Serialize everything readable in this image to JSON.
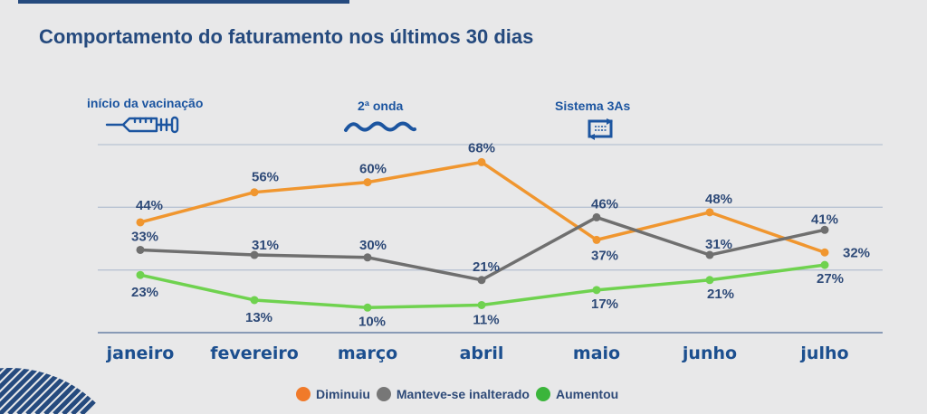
{
  "title": "Comportamento do faturamento nos últimos 30 dias",
  "annotations": [
    {
      "label": "início da vacinação",
      "icon": "syringe-icon",
      "month_index": 0
    },
    {
      "label": "2ª onda",
      "icon": "wave-icon",
      "month_index": 2
    },
    {
      "label": "Sistema 3As",
      "icon": "transfer-arrows-icon",
      "month_index": 4
    }
  ],
  "legend": [
    {
      "label": "Diminuiu",
      "color": "#f07a2a"
    },
    {
      "label": "Manteve-se inalterado",
      "color": "#777777"
    },
    {
      "label": "Aumentou",
      "color": "#3bb53b"
    }
  ],
  "colors": {
    "title": "#254a7e",
    "accent_blue": "#1c55a0",
    "gridline": "#b9c3d3",
    "axis": "#7a8fae",
    "label": "#2e4a78"
  },
  "chart_data": {
    "type": "line",
    "title": "Comportamento do faturamento nos últimos 30 dias",
    "xlabel": "",
    "ylabel": "",
    "categories": [
      "janeiro",
      "fevereiro",
      "março",
      "abril",
      "maio",
      "junho",
      "julho"
    ],
    "ylim": [
      0,
      75
    ],
    "gridlines": [
      25,
      50,
      75
    ],
    "grid": true,
    "legend_position": "bottom",
    "series": [
      {
        "name": "Diminuiu",
        "color": "#f0962f",
        "values": [
          44,
          56,
          60,
          68,
          37,
          48,
          32
        ],
        "labels": [
          "44%",
          "56%",
          "60%",
          "68%",
          "37%",
          "48%",
          "32%"
        ]
      },
      {
        "name": "Manteve-se inalterado",
        "color": "#6f6f6f",
        "values": [
          33,
          31,
          30,
          21,
          46,
          31,
          41
        ],
        "labels": [
          "33%",
          "31%",
          "30%",
          "21%",
          "46%",
          "31%",
          "41%"
        ]
      },
      {
        "name": "Aumentou",
        "color": "#6fd24f",
        "values": [
          23,
          13,
          10,
          11,
          17,
          21,
          27
        ],
        "labels": [
          "23%",
          "13%",
          "10%",
          "11%",
          "17%",
          "21%",
          "27%"
        ]
      }
    ]
  }
}
